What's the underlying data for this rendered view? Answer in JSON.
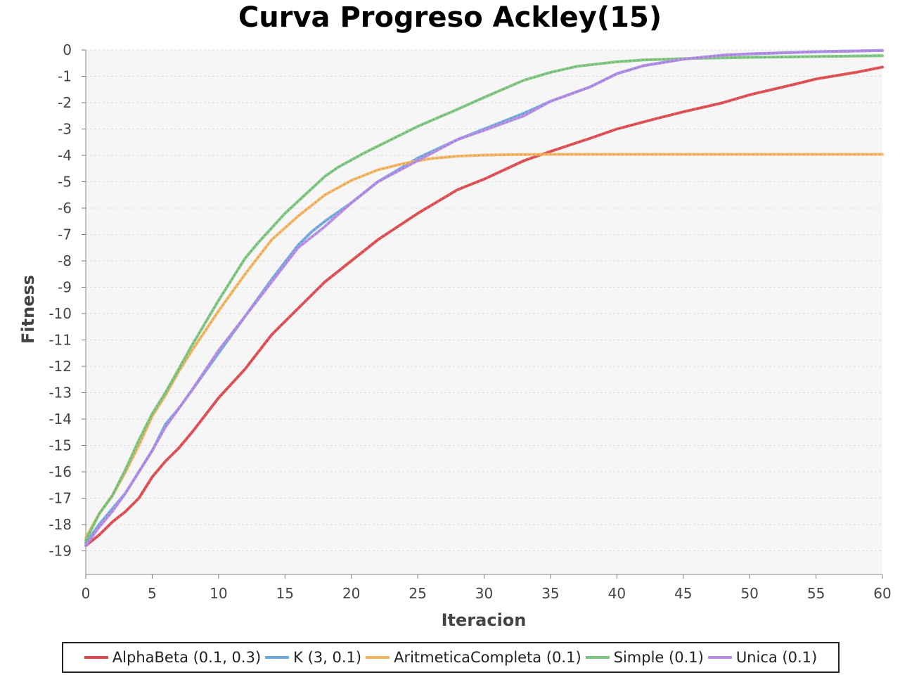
{
  "chart_data": {
    "type": "line",
    "title": "Curva Progreso Ackley(15)",
    "xlabel": "Iteracion",
    "ylabel": "Fitness",
    "xlim": [
      0,
      60
    ],
    "ylim": [
      -20,
      0
    ],
    "xticks": [
      0,
      5,
      10,
      15,
      20,
      25,
      30,
      35,
      40,
      45,
      50,
      55,
      60
    ],
    "yticks": [
      0,
      -1,
      -2,
      -3,
      -4,
      -5,
      -6,
      -7,
      -8,
      -9,
      -10,
      -11,
      -12,
      -13,
      -14,
      -15,
      -16,
      -17,
      -18,
      -19
    ],
    "grid": true,
    "legend_position": "bottom",
    "series": [
      {
        "name": "AlphaBeta (0.1, 0.3)",
        "color": "#e0474c",
        "x": [
          0,
          1,
          2,
          3,
          4,
          5,
          6,
          7,
          8,
          10,
          12,
          14,
          16,
          18,
          20,
          22,
          25,
          28,
          30,
          33,
          35,
          38,
          40,
          43,
          45,
          48,
          50,
          53,
          55,
          58,
          60
        ],
        "y": [
          -18.8,
          -18.4,
          -17.9,
          -17.5,
          -17.0,
          -16.2,
          -15.6,
          -15.1,
          -14.5,
          -13.2,
          -12.1,
          -10.8,
          -9.8,
          -8.8,
          -8.0,
          -7.2,
          -6.2,
          -5.3,
          -4.9,
          -4.2,
          -3.85,
          -3.35,
          -3.0,
          -2.6,
          -2.35,
          -2.0,
          -1.7,
          -1.35,
          -1.1,
          -0.85,
          -0.65
        ]
      },
      {
        "name": "K (3, 0.1)",
        "color": "#6fa8dc",
        "x": [
          0,
          1,
          2,
          3,
          4,
          5,
          6,
          7,
          8,
          10,
          12,
          14,
          16,
          17,
          18,
          20,
          22,
          25,
          28,
          30,
          33,
          35,
          38,
          40,
          42,
          45,
          48,
          50,
          55,
          60
        ],
        "y": [
          -18.7,
          -18.0,
          -17.4,
          -16.8,
          -16.0,
          -15.2,
          -14.2,
          -13.6,
          -12.9,
          -11.5,
          -10.1,
          -8.7,
          -7.4,
          -6.9,
          -6.5,
          -5.8,
          -5.0,
          -4.1,
          -3.4,
          -3.0,
          -2.4,
          -1.95,
          -1.4,
          -0.9,
          -0.6,
          -0.35,
          -0.2,
          -0.15,
          -0.07,
          -0.02
        ]
      },
      {
        "name": "AritmeticaCompleta (0.1)",
        "color": "#f4b560",
        "x": [
          0,
          1,
          2,
          3,
          4,
          5,
          6,
          7,
          8,
          10,
          12,
          14,
          16,
          18,
          20,
          22,
          24,
          26,
          28,
          30,
          32,
          35,
          40,
          45,
          50,
          55,
          60
        ],
        "y": [
          -18.5,
          -17.6,
          -16.9,
          -16.0,
          -15.0,
          -13.9,
          -13.1,
          -12.2,
          -11.4,
          -9.9,
          -8.5,
          -7.2,
          -6.3,
          -5.5,
          -4.95,
          -4.55,
          -4.3,
          -4.12,
          -4.03,
          -3.99,
          -3.97,
          -3.96,
          -3.96,
          -3.96,
          -3.96,
          -3.96,
          -3.96
        ]
      },
      {
        "name": "Simple (0.1)",
        "color": "#7cc67e",
        "x": [
          0,
          1,
          2,
          3,
          4,
          5,
          6,
          7,
          8,
          10,
          12,
          13,
          15,
          18,
          19,
          21,
          23,
          25,
          28,
          30,
          33,
          35,
          37,
          40,
          42,
          45,
          50,
          55,
          60
        ],
        "y": [
          -18.6,
          -17.6,
          -16.9,
          -15.9,
          -14.8,
          -13.8,
          -13.0,
          -12.1,
          -11.2,
          -9.5,
          -7.9,
          -7.3,
          -6.2,
          -4.8,
          -4.45,
          -3.9,
          -3.4,
          -2.9,
          -2.25,
          -1.8,
          -1.15,
          -0.85,
          -0.62,
          -0.45,
          -0.38,
          -0.33,
          -0.28,
          -0.25,
          -0.22
        ]
      },
      {
        "name": "Unica (0.1)",
        "color": "#b98ee8",
        "x": [
          0,
          1,
          2,
          3,
          4,
          5,
          6,
          7,
          8,
          10,
          12,
          14,
          16,
          18,
          20,
          22,
          25,
          28,
          30,
          33,
          35,
          38,
          40,
          42,
          45,
          48,
          50,
          55,
          60
        ],
        "y": [
          -18.8,
          -18.1,
          -17.5,
          -16.8,
          -16.0,
          -15.2,
          -14.3,
          -13.6,
          -12.9,
          -11.4,
          -10.1,
          -8.8,
          -7.5,
          -6.7,
          -5.8,
          -5.0,
          -4.2,
          -3.4,
          -3.05,
          -2.5,
          -1.95,
          -1.4,
          -0.9,
          -0.6,
          -0.35,
          -0.2,
          -0.15,
          -0.07,
          -0.02
        ]
      }
    ]
  }
}
